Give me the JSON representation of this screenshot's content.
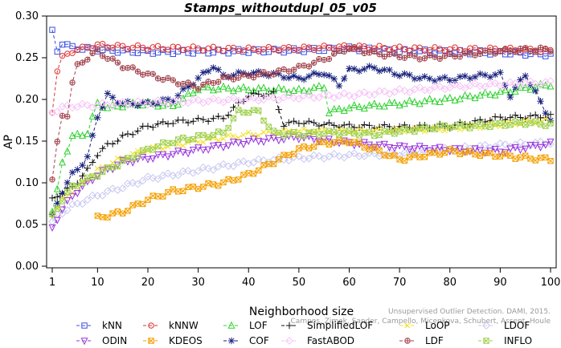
{
  "chart_data": {
    "type": "line",
    "title": "Stamps_withoutdupl_05_v05",
    "xlabel": "Neighborhood size",
    "ylabel": "AP",
    "xlim": [
      1,
      100
    ],
    "ylim": [
      0,
      0.3
    ],
    "x_ticks": [
      1,
      10,
      20,
      30,
      40,
      50,
      60,
      70,
      80,
      90,
      100
    ],
    "y_ticks": [
      "0.00",
      "0.05",
      "0.10",
      "0.15",
      "0.20",
      "0.25",
      "0.30"
    ],
    "grid": false,
    "legend_position": "bottom",
    "citation": [
      "Unsupervised Outlier Detection. DAMI, 2015.",
      "Campos, Zimek, Sander, Campello, Micenkova, Schubert, Assent, Houle"
    ],
    "series": [
      {
        "name": "kNN",
        "color": "#3b4fe0",
        "marker": "square",
        "k": [
          1,
          2,
          3,
          5,
          10,
          15,
          20,
          30,
          40,
          50,
          60,
          70,
          80,
          90,
          100
        ],
        "ap": [
          0.281,
          0.258,
          0.268,
          0.262,
          0.26,
          0.258,
          0.257,
          0.257,
          0.258,
          0.259,
          0.261,
          0.258,
          0.257,
          0.256,
          0.254
        ]
      },
      {
        "name": "kNNW",
        "color": "#e03030",
        "marker": "circle",
        "k": [
          1,
          2,
          3,
          5,
          10,
          15,
          20,
          30,
          40,
          50,
          60,
          70,
          80,
          90,
          100
        ],
        "ap": [
          0.186,
          0.235,
          0.25,
          0.258,
          0.265,
          0.263,
          0.262,
          0.261,
          0.26,
          0.261,
          0.263,
          0.261,
          0.26,
          0.26,
          0.258
        ]
      },
      {
        "name": "LOF",
        "color": "#2fd12f",
        "marker": "triangle",
        "k": [
          1,
          2,
          3,
          5,
          8,
          10,
          12,
          15,
          20,
          25,
          30,
          35,
          40,
          45,
          50,
          55,
          56,
          60,
          70,
          80,
          90,
          100
        ],
        "ap": [
          0.065,
          0.09,
          0.125,
          0.155,
          0.16,
          0.195,
          0.19,
          0.193,
          0.195,
          0.192,
          0.213,
          0.213,
          0.212,
          0.212,
          0.21,
          0.215,
          0.185,
          0.19,
          0.195,
          0.2,
          0.208,
          0.218
        ]
      },
      {
        "name": "SimplifiedLOF",
        "color": "#111111",
        "marker": "plus",
        "k": [
          1,
          2,
          3,
          5,
          8,
          10,
          12,
          15,
          20,
          25,
          30,
          35,
          40,
          45,
          47,
          50,
          55,
          60,
          70,
          80,
          90,
          100
        ],
        "ap": [
          0.08,
          0.085,
          0.088,
          0.095,
          0.115,
          0.135,
          0.145,
          0.155,
          0.168,
          0.173,
          0.175,
          0.178,
          0.205,
          0.207,
          0.17,
          0.173,
          0.17,
          0.168,
          0.167,
          0.168,
          0.178,
          0.18
        ]
      },
      {
        "name": "LoOP",
        "color": "#f0e020",
        "marker": "x",
        "k": [
          1,
          2,
          3,
          5,
          10,
          15,
          20,
          30,
          40,
          50,
          60,
          70,
          80,
          90,
          100
        ],
        "ap": [
          0.06,
          0.07,
          0.08,
          0.09,
          0.115,
          0.13,
          0.14,
          0.15,
          0.158,
          0.162,
          0.162,
          0.163,
          0.165,
          0.17,
          0.175
        ]
      },
      {
        "name": "LDOF",
        "color": "#c8c8f0",
        "marker": "diamond",
        "k": [
          1,
          2,
          3,
          5,
          10,
          15,
          20,
          30,
          40,
          50,
          60,
          70,
          80,
          90,
          100
        ],
        "ap": [
          0.052,
          0.06,
          0.065,
          0.072,
          0.085,
          0.095,
          0.105,
          0.115,
          0.125,
          0.13,
          0.133,
          0.135,
          0.14,
          0.145,
          0.148
        ]
      },
      {
        "name": "ODIN",
        "color": "#9933dd",
        "marker": "triangle-down",
        "k": [
          1,
          2,
          3,
          5,
          10,
          15,
          20,
          30,
          40,
          50,
          60,
          70,
          80,
          90,
          100
        ],
        "ap": [
          0.046,
          0.058,
          0.068,
          0.085,
          0.11,
          0.125,
          0.13,
          0.14,
          0.15,
          0.155,
          0.148,
          0.143,
          0.14,
          0.138,
          0.147
        ]
      },
      {
        "name": "KDEOS",
        "color": "#f5a000",
        "marker": "square-x",
        "k": [
          10,
          15,
          20,
          25,
          30,
          35,
          40,
          45,
          50,
          55,
          60,
          65,
          70,
          75,
          80,
          85,
          90,
          95,
          100
        ],
        "ap": [
          0.058,
          0.065,
          0.08,
          0.09,
          0.095,
          0.1,
          0.11,
          0.125,
          0.14,
          0.148,
          0.15,
          0.14,
          0.128,
          0.133,
          0.138,
          0.135,
          0.133,
          0.13,
          0.128
        ]
      },
      {
        "name": "COF",
        "color": "#1a237e",
        "marker": "star",
        "k": [
          1,
          3,
          5,
          8,
          10,
          12,
          15,
          20,
          25,
          30,
          33,
          35,
          40,
          45,
          50,
          55,
          58,
          60,
          65,
          70,
          75,
          80,
          85,
          90,
          92,
          95,
          100
        ],
        "ap": [
          0.06,
          0.09,
          0.11,
          0.13,
          0.18,
          0.205,
          0.195,
          0.195,
          0.2,
          0.225,
          0.24,
          0.228,
          0.232,
          0.23,
          0.225,
          0.232,
          0.218,
          0.235,
          0.238,
          0.23,
          0.225,
          0.224,
          0.228,
          0.23,
          0.205,
          0.23,
          0.175
        ]
      },
      {
        "name": "FastABOD",
        "color": "#f6c2f6",
        "marker": "diamond",
        "k": [
          1,
          3,
          5,
          10,
          15,
          20,
          25,
          30,
          40,
          50,
          60,
          70,
          80,
          90,
          100
        ],
        "ap": [
          0.185,
          0.19,
          0.192,
          0.193,
          0.195,
          0.196,
          0.197,
          0.198,
          0.2,
          0.203,
          0.205,
          0.21,
          0.215,
          0.218,
          0.22
        ]
      },
      {
        "name": "LDF",
        "color": "#a0404a",
        "marker": "circle-plus",
        "k": [
          1,
          2,
          3,
          4,
          5,
          6,
          8,
          10,
          12,
          15,
          20,
          25,
          30,
          35,
          40,
          45,
          50,
          55,
          60,
          65,
          70,
          75,
          80,
          85,
          90,
          95,
          100
        ],
        "ap": [
          0.105,
          0.147,
          0.18,
          0.182,
          0.22,
          0.24,
          0.25,
          0.258,
          0.25,
          0.24,
          0.23,
          0.222,
          0.215,
          0.225,
          0.228,
          0.232,
          0.238,
          0.248,
          0.262,
          0.255,
          0.252,
          0.25,
          0.252,
          0.255,
          0.258,
          0.26,
          0.26
        ]
      },
      {
        "name": "INFLO",
        "color": "#a0d050",
        "marker": "square-x",
        "k": [
          1,
          2,
          3,
          5,
          10,
          15,
          20,
          25,
          30,
          35,
          38,
          40,
          42,
          45,
          50,
          55,
          60,
          65,
          70,
          75,
          80,
          85,
          90,
          95,
          100
        ],
        "ap": [
          0.06,
          0.07,
          0.08,
          0.095,
          0.11,
          0.125,
          0.14,
          0.15,
          0.155,
          0.16,
          0.185,
          0.186,
          0.185,
          0.16,
          0.158,
          0.16,
          0.16,
          0.158,
          0.162,
          0.165,
          0.168,
          0.168,
          0.17,
          0.172,
          0.17
        ]
      }
    ]
  }
}
